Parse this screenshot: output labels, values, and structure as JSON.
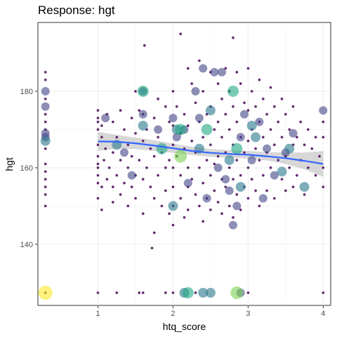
{
  "chart_data": {
    "type": "scatter",
    "title": "Response: hgt",
    "xlabel": "htq_score",
    "ylabel": "hgt",
    "xlim": [
      0.2,
      4.1
    ],
    "ylim": [
      124,
      198
    ],
    "x_ticks": [
      1,
      2,
      3,
      4
    ],
    "x_tick_labels": [
      "1",
      "2",
      "3",
      "4"
    ],
    "y_ticks": [
      140,
      160,
      180
    ],
    "y_tick_labels": [
      "140",
      "160",
      "180"
    ],
    "grid": true,
    "legend": "none",
    "smooth_line": {
      "x": [
        1.0,
        1.25,
        1.5,
        1.75,
        2.0,
        2.25,
        2.5,
        2.75,
        3.0,
        3.25,
        3.5,
        3.75,
        4.0
      ],
      "y": [
        166.9,
        166.8,
        166.4,
        165.8,
        165.1,
        164.4,
        163.9,
        163.6,
        163.4,
        163.0,
        162.5,
        161.8,
        161.0
      ],
      "color": "#3366FF"
    },
    "confidence_band": {
      "x": [
        1.0,
        1.25,
        1.5,
        1.75,
        2.0,
        2.25,
        2.5,
        2.75,
        3.0,
        3.25,
        3.5,
        3.75,
        4.0
      ],
      "lower": [
        164.4,
        165.0,
        164.9,
        164.4,
        163.9,
        163.3,
        162.9,
        162.6,
        162.4,
        161.9,
        161.0,
        159.6,
        157.6
      ],
      "upper": [
        169.4,
        168.6,
        167.9,
        167.2,
        166.3,
        165.5,
        164.9,
        164.6,
        164.4,
        164.1,
        164.0,
        164.0,
        164.4
      ],
      "color": "#bdbdbd"
    },
    "series": [
      {
        "marker_size": "small",
        "color": "#440154",
        "points": [
          [
            0.3,
            185
          ],
          [
            0.3,
            183
          ],
          [
            0.3,
            178
          ],
          [
            0.3,
            174
          ],
          [
            0.3,
            172
          ],
          [
            0.3,
            170
          ],
          [
            0.3,
            165
          ],
          [
            0.3,
            161
          ],
          [
            0.3,
            159
          ],
          [
            0.3,
            157
          ],
          [
            0.3,
            155
          ],
          [
            0.3,
            153
          ],
          [
            0.3,
            150
          ],
          [
            0.3,
            127.3
          ],
          [
            1.0,
            175
          ],
          [
            1.0,
            173
          ],
          [
            1.0,
            172
          ],
          [
            1.0,
            170
          ],
          [
            1.0,
            166
          ],
          [
            1.0,
            163
          ],
          [
            1.0,
            161
          ],
          [
            1.0,
            160
          ],
          [
            1.0,
            158
          ],
          [
            1.0,
            156
          ],
          [
            1.0,
            152
          ],
          [
            1.0,
            127.3
          ],
          [
            1.05,
            171
          ],
          [
            1.05,
            168
          ],
          [
            1.05,
            155
          ],
          [
            1.05,
            149
          ],
          [
            1.08,
            162
          ],
          [
            1.1,
            165
          ],
          [
            1.12,
            174
          ],
          [
            1.12,
            157
          ],
          [
            1.15,
            160
          ],
          [
            1.2,
            172
          ],
          [
            1.2,
            164
          ],
          [
            1.2,
            155
          ],
          [
            1.2,
            151
          ],
          [
            1.25,
            168
          ],
          [
            1.25,
            158
          ],
          [
            1.25,
            127.3
          ],
          [
            1.3,
            175
          ],
          [
            1.3,
            162
          ],
          [
            1.3,
            153
          ],
          [
            1.35,
            170
          ],
          [
            1.35,
            156
          ],
          [
            1.4,
            166
          ],
          [
            1.4,
            160
          ],
          [
            1.4,
            150
          ],
          [
            1.45,
            173
          ],
          [
            1.45,
            163
          ],
          [
            1.45,
            155
          ],
          [
            1.5,
            180
          ],
          [
            1.5,
            169
          ],
          [
            1.5,
            158
          ],
          [
            1.5,
            152
          ],
          [
            1.55,
            175
          ],
          [
            1.55,
            162
          ],
          [
            1.55,
            127.3
          ],
          [
            1.6,
            174
          ],
          [
            1.6,
            167
          ],
          [
            1.6,
            157
          ],
          [
            1.6,
            148
          ],
          [
            1.6,
            127.3
          ],
          [
            1.62,
            192
          ],
          [
            1.65,
            170
          ],
          [
            1.65,
            160
          ],
          [
            1.7,
            165
          ],
          [
            1.7,
            155
          ],
          [
            1.72,
            139
          ],
          [
            1.75,
            173
          ],
          [
            1.75,
            163
          ],
          [
            1.75,
            152
          ],
          [
            1.75,
            143
          ],
          [
            1.8,
            178
          ],
          [
            1.8,
            168
          ],
          [
            1.8,
            158
          ],
          [
            1.85,
            164
          ],
          [
            1.85,
            150
          ],
          [
            1.9,
            176
          ],
          [
            1.9,
            160
          ],
          [
            1.9,
            154
          ],
          [
            1.9,
            127.3
          ],
          [
            1.95,
            172
          ],
          [
            1.95,
            162
          ],
          [
            1.95,
            148
          ],
          [
            2.0,
            180
          ],
          [
            2.0,
            171
          ],
          [
            2.0,
            166
          ],
          [
            2.0,
            160
          ],
          [
            2.0,
            155
          ],
          [
            2.0,
            150
          ],
          [
            2.0,
            145
          ],
          [
            2.0,
            127.3
          ],
          [
            2.05,
            176
          ],
          [
            2.05,
            163
          ],
          [
            2.1,
            195
          ],
          [
            2.1,
            169
          ],
          [
            2.1,
            158
          ],
          [
            2.1,
            152
          ],
          [
            2.15,
            174
          ],
          [
            2.15,
            165
          ],
          [
            2.15,
            147
          ],
          [
            2.2,
            186
          ],
          [
            2.2,
            171
          ],
          [
            2.2,
            160
          ],
          [
            2.2,
            155
          ],
          [
            2.2,
            149
          ],
          [
            2.25,
            182
          ],
          [
            2.25,
            167
          ],
          [
            2.25,
            157
          ],
          [
            2.3,
            177
          ],
          [
            2.3,
            164
          ],
          [
            2.3,
            153
          ],
          [
            2.3,
            127.3
          ],
          [
            2.35,
            188
          ],
          [
            2.35,
            172
          ],
          [
            2.35,
            160
          ],
          [
            2.35,
            150
          ],
          [
            2.4,
            180
          ],
          [
            2.4,
            168
          ],
          [
            2.4,
            156
          ],
          [
            2.4,
            146
          ],
          [
            2.45,
            174
          ],
          [
            2.45,
            162
          ],
          [
            2.45,
            152
          ],
          [
            2.5,
            185
          ],
          [
            2.5,
            176
          ],
          [
            2.5,
            166
          ],
          [
            2.5,
            158
          ],
          [
            2.5,
            149
          ],
          [
            2.55,
            170
          ],
          [
            2.55,
            161
          ],
          [
            2.55,
            154
          ],
          [
            2.6,
            182
          ],
          [
            2.6,
            172
          ],
          [
            2.6,
            163
          ],
          [
            2.6,
            151
          ],
          [
            2.65,
            178
          ],
          [
            2.65,
            168
          ],
          [
            2.65,
            157
          ],
          [
            2.65,
            148
          ],
          [
            2.7,
            186
          ],
          [
            2.7,
            174
          ],
          [
            2.7,
            164
          ],
          [
            2.7,
            155
          ],
          [
            2.75,
            180
          ],
          [
            2.75,
            170
          ],
          [
            2.75,
            160
          ],
          [
            2.75,
            150
          ],
          [
            2.8,
            194
          ],
          [
            2.8,
            176
          ],
          [
            2.8,
            166
          ],
          [
            2.8,
            157
          ],
          [
            2.8,
            147
          ],
          [
            2.85,
            185
          ],
          [
            2.85,
            172
          ],
          [
            2.85,
            162
          ],
          [
            2.85,
            153
          ],
          [
            2.9,
            182
          ],
          [
            2.9,
            168
          ],
          [
            2.9,
            158
          ],
          [
            2.9,
            149
          ],
          [
            2.95,
            177
          ],
          [
            2.95,
            164
          ],
          [
            2.95,
            155
          ],
          [
            3.0,
            186
          ],
          [
            3.0,
            175
          ],
          [
            3.0,
            167
          ],
          [
            3.0,
            160
          ],
          [
            3.0,
            152
          ],
          [
            3.0,
            127.3
          ],
          [
            3.05,
            180
          ],
          [
            3.05,
            170
          ],
          [
            3.05,
            157
          ],
          [
            3.1,
            176
          ],
          [
            3.1,
            165
          ],
          [
            3.1,
            154
          ],
          [
            3.15,
            183
          ],
          [
            3.15,
            172
          ],
          [
            3.15,
            162
          ],
          [
            3.15,
            150
          ],
          [
            3.2,
            178
          ],
          [
            3.2,
            168
          ],
          [
            3.2,
            158
          ],
          [
            3.25,
            174
          ],
          [
            3.25,
            164
          ],
          [
            3.25,
            154
          ],
          [
            3.3,
            181
          ],
          [
            3.3,
            170
          ],
          [
            3.3,
            160
          ],
          [
            3.35,
            176
          ],
          [
            3.35,
            166
          ],
          [
            3.35,
            152
          ],
          [
            3.4,
            172
          ],
          [
            3.4,
            162
          ],
          [
            3.45,
            178
          ],
          [
            3.45,
            168
          ],
          [
            3.45,
            157
          ],
          [
            3.5,
            174
          ],
          [
            3.5,
            163
          ],
          [
            3.5,
            154
          ],
          [
            3.55,
            170
          ],
          [
            3.55,
            160
          ],
          [
            3.6,
            176
          ],
          [
            3.6,
            166
          ],
          [
            3.6,
            155
          ],
          [
            3.65,
            168
          ],
          [
            3.65,
            158
          ],
          [
            3.7,
            172
          ],
          [
            3.7,
            162
          ],
          [
            3.75,
            166
          ],
          [
            3.75,
            153
          ],
          [
            3.8,
            170
          ],
          [
            3.8,
            160
          ],
          [
            3.85,
            165
          ],
          [
            3.9,
            168
          ],
          [
            3.9,
            158
          ],
          [
            3.95,
            163
          ],
          [
            4.0,
            172
          ],
          [
            4.0,
            168
          ],
          [
            4.0,
            160
          ],
          [
            4.0,
            155
          ],
          [
            4.0,
            127.3
          ]
        ]
      },
      {
        "marker_size": "medium",
        "color": "#414487",
        "points": [
          [
            0.3,
            180
          ],
          [
            0.3,
            176
          ],
          [
            0.3,
            169
          ],
          [
            0.3,
            168
          ],
          [
            1.1,
            173
          ],
          [
            1.35,
            164
          ],
          [
            1.45,
            158
          ],
          [
            1.6,
            180
          ],
          [
            1.6,
            174
          ],
          [
            1.8,
            170
          ],
          [
            2.0,
            173
          ],
          [
            2.05,
            168
          ],
          [
            2.15,
            170
          ],
          [
            2.2,
            156
          ],
          [
            2.3,
            180
          ],
          [
            2.35,
            173
          ],
          [
            2.4,
            186
          ],
          [
            2.45,
            152
          ],
          [
            2.55,
            185
          ],
          [
            2.6,
            160
          ],
          [
            2.65,
            185
          ],
          [
            2.7,
            157
          ],
          [
            2.75,
            154
          ],
          [
            2.8,
            145
          ],
          [
            2.85,
            150
          ],
          [
            2.9,
            168
          ],
          [
            2.95,
            174
          ],
          [
            3.05,
            162
          ],
          [
            3.15,
            172
          ],
          [
            3.2,
            152
          ],
          [
            3.25,
            165
          ],
          [
            3.35,
            158
          ],
          [
            3.5,
            164
          ],
          [
            3.6,
            169
          ],
          [
            4.0,
            175
          ],
          [
            2.9,
            127.3
          ]
        ]
      },
      {
        "marker_size": "large",
        "color": "#2A788E",
        "points": [
          [
            0.3,
            167
          ],
          [
            1.25,
            166
          ],
          [
            1.6,
            171
          ],
          [
            2.05,
            170
          ],
          [
            2.35,
            165
          ],
          [
            2.5,
            175
          ],
          [
            2.75,
            162
          ],
          [
            2.9,
            155
          ],
          [
            3.05,
            171
          ],
          [
            3.1,
            168
          ],
          [
            3.45,
            159
          ],
          [
            3.55,
            165
          ],
          [
            3.75,
            155
          ],
          [
            2.4,
            127.3
          ],
          [
            2.15,
            127.3
          ],
          [
            2.5,
            127.3
          ],
          [
            2.0,
            150
          ]
        ]
      },
      {
        "marker_size": "xlarge",
        "color": "#22A884",
        "points": [
          [
            1.6,
            180
          ],
          [
            2.8,
            180
          ],
          [
            2.1,
            170
          ],
          [
            2.45,
            170
          ],
          [
            2.85,
            165
          ],
          [
            1.85,
            165
          ],
          [
            2.2,
            127.3
          ]
        ]
      },
      {
        "marker_size": "xxlarge",
        "color": "#7AD151",
        "points": [
          [
            2.1,
            163
          ],
          [
            2.85,
            127.3
          ]
        ]
      },
      {
        "marker_size": "huge",
        "color": "#FDE725",
        "points": [
          [
            0.3,
            127.3
          ]
        ]
      }
    ]
  }
}
